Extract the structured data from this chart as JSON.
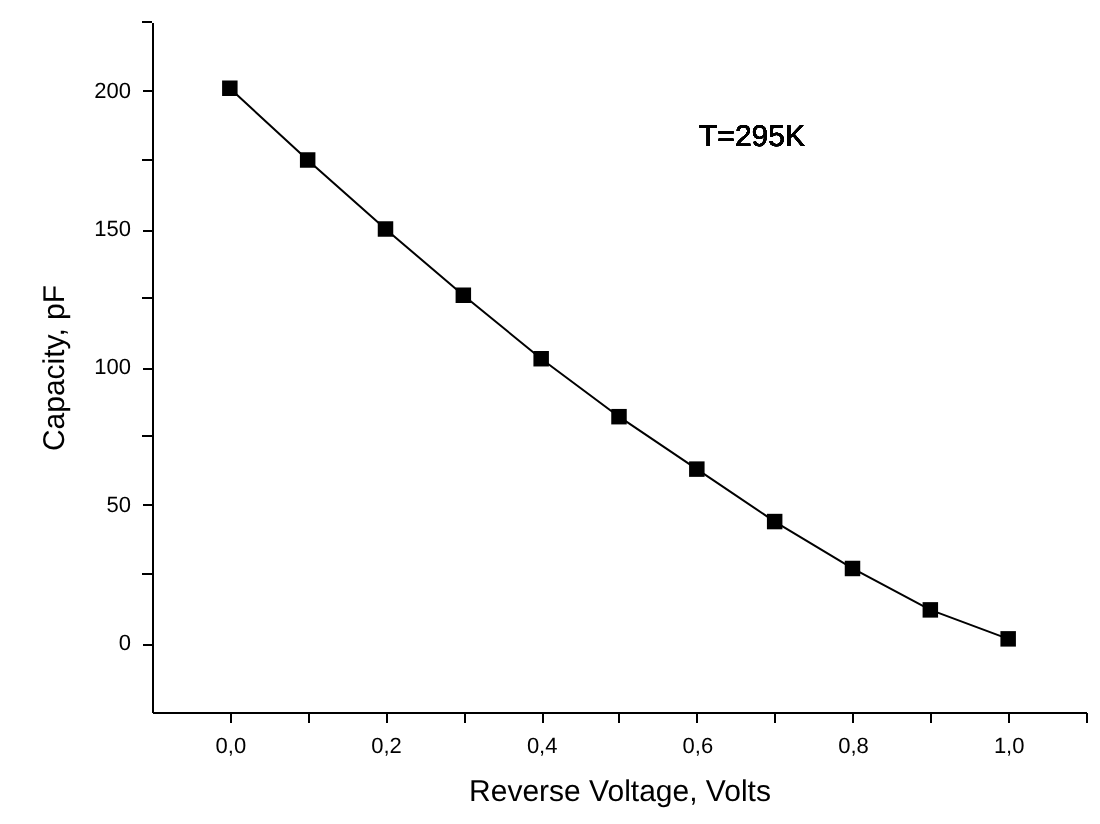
{
  "chart_data": {
    "type": "line",
    "xlabel": "Reverse Voltage, Volts",
    "ylabel": "Capacity, pF",
    "annotations": [
      "T=295K"
    ],
    "x": [
      0,
      0.1,
      0.2,
      0.3,
      0.4,
      0.5,
      0.6,
      0.7,
      0.8,
      0.9,
      1.0
    ],
    "series": [
      {
        "color": "#000000",
        "values": [
          201,
          175,
          150,
          126,
          103,
          82,
          63,
          44,
          27,
          12,
          1.5
        ]
      }
    ],
    "xlim": [
      -0.1,
      1.1
    ],
    "xticks": [
      {
        "value": 0,
        "label": "0,0"
      },
      {
        "value": 0.1,
        "label": null
      },
      {
        "value": 0.2,
        "label": "0,2"
      },
      {
        "value": 0.3,
        "label": null
      },
      {
        "value": 0.4,
        "label": "0,4"
      },
      {
        "value": 0.5,
        "label": null
      },
      {
        "value": 0.6,
        "label": "0,6"
      },
      {
        "value": 0.7,
        "label": null
      },
      {
        "value": 0.8,
        "label": "0,8"
      },
      {
        "value": 0.9,
        "label": null
      },
      {
        "value": 1.0,
        "label": "1,0"
      },
      {
        "value": 1.1,
        "label": null
      }
    ],
    "ylim": [
      -25,
      225
    ],
    "yticks": [
      0,
      {
        "value": 25,
        "label": null
      },
      50,
      {
        "value": 75,
        "label": null
      },
      100,
      {
        "value": 125,
        "label": null
      },
      150,
      {
        "value": 175,
        "label": null
      },
      200,
      {
        "value": 225,
        "label": null
      }
    ],
    "grid": false,
    "marker": "square",
    "line_style": "solid"
  }
}
